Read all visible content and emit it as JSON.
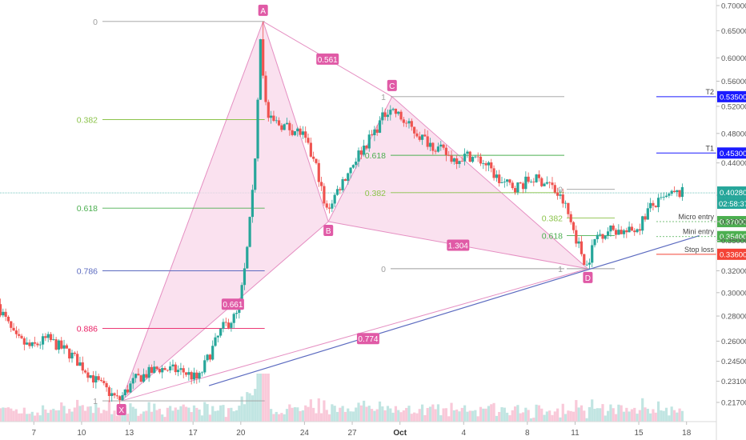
{
  "chart_data": {
    "type": "candlestick",
    "price_axis": {
      "ticks": [
        "0.70000",
        "0.65000",
        "0.60000",
        "0.56000",
        "0.52000",
        "0.48000",
        "0.44000",
        "0.40000",
        "0.37000",
        "0.35000",
        "0.32000",
        "0.30000",
        "0.28000",
        "0.26000",
        "0.24500",
        "0.23100",
        "0.21700"
      ],
      "ylim": [
        0.21,
        0.71
      ],
      "scale": "log"
    },
    "date_axis": {
      "ticks": [
        {
          "label": "7",
          "day": 7
        },
        {
          "label": "10",
          "day": 10
        },
        {
          "label": "13",
          "day": 13
        },
        {
          "label": "17",
          "day": 17
        },
        {
          "label": "20",
          "day": 20
        },
        {
          "label": "24",
          "day": 24
        },
        {
          "label": "27",
          "day": 27
        },
        {
          "label": "Oct",
          "day": 30
        },
        {
          "label": "4",
          "day": 34
        },
        {
          "label": "8",
          "day": 38
        },
        {
          "label": "11",
          "day": 41
        },
        {
          "label": "15",
          "day": 45
        },
        {
          "label": "18",
          "day": 48
        }
      ]
    },
    "current_price": {
      "label": "0.40280",
      "value": 0.4028,
      "countdown": "02:58:37"
    },
    "pattern_points": [
      {
        "label": "X",
        "day": 12.5,
        "price": 0.218
      },
      {
        "label": "A",
        "day": 21.4,
        "price": 0.668
      },
      {
        "label": "B",
        "day": 25.5,
        "price": 0.37
      },
      {
        "label": "C",
        "day": 29.5,
        "price": 0.535
      },
      {
        "label": "D",
        "day": 41.8,
        "price": 0.322
      }
    ],
    "ratio_labels": [
      {
        "label": "0.561",
        "between": [
          "A",
          "C"
        ]
      },
      {
        "label": "0.661",
        "between": [
          "X",
          "B"
        ]
      },
      {
        "label": "1.304",
        "between": [
          "B",
          "D"
        ]
      },
      {
        "label": "0.774",
        "between": [
          "X",
          "D"
        ]
      }
    ],
    "fib_left": {
      "levels": [
        {
          "label": "0",
          "price": 0.668,
          "color": "#9e9e9e"
        },
        {
          "label": "0.382",
          "price": 0.5,
          "color": "#8bc34a"
        },
        {
          "label": "0.618",
          "price": 0.385,
          "color": "#4caf50"
        },
        {
          "label": "0.786",
          "price": 0.32,
          "color": "#5c6bc0"
        },
        {
          "label": "0.886",
          "price": 0.27,
          "color": "#e91e63"
        },
        {
          "label": "1",
          "price": 0.218,
          "color": "#9e9e9e"
        }
      ]
    },
    "fib_mid": {
      "levels": [
        {
          "label": "1",
          "price": 0.535,
          "color": "#9e9e9e"
        },
        {
          "label": "0.618",
          "price": 0.45,
          "color": "#4caf50"
        },
        {
          "label": "0.382",
          "price": 0.403,
          "color": "#8bc34a"
        },
        {
          "label": "0",
          "price": 0.322,
          "color": "#9e9e9e"
        }
      ]
    },
    "fib_right": {
      "levels": [
        {
          "label": "0",
          "price": 0.407,
          "color": "#9e9e9e"
        },
        {
          "label": "0.382",
          "price": 0.374,
          "color": "#8bc34a"
        },
        {
          "label": "0.618",
          "price": 0.355,
          "color": "#4caf50"
        },
        {
          "label": "1",
          "price": 0.322,
          "color": "#9e9e9e"
        }
      ]
    },
    "trade_levels": [
      {
        "label": "T2",
        "price_label": "0.53500",
        "price": 0.535,
        "color": "#1a1aff",
        "style": "solid"
      },
      {
        "label": "T1",
        "price_label": "0.45300",
        "price": 0.453,
        "color": "#1a1aff",
        "style": "solid"
      },
      {
        "label": "Micro entry",
        "price_label": "0.37000",
        "price": 0.37,
        "color": "#4caf50",
        "style": "dashed"
      },
      {
        "label": "Mini entry",
        "price_label": "0.35400",
        "price": 0.354,
        "color": "#4caf50",
        "style": "dashed"
      },
      {
        "label": "Stop loss",
        "price_label": "0.33600",
        "price": 0.336,
        "color": "#f44336",
        "style": "solid"
      }
    ],
    "trendline": {
      "from": {
        "day": 18,
        "price": 0.228
      },
      "to": {
        "day": 48.8,
        "price": 0.355
      }
    },
    "colors": {
      "up": "#26a69a",
      "down": "#ef5350",
      "pattern": "#e91e8c",
      "pattern_fill": "#f8d7ea",
      "trend": "#5c6bc0"
    }
  }
}
